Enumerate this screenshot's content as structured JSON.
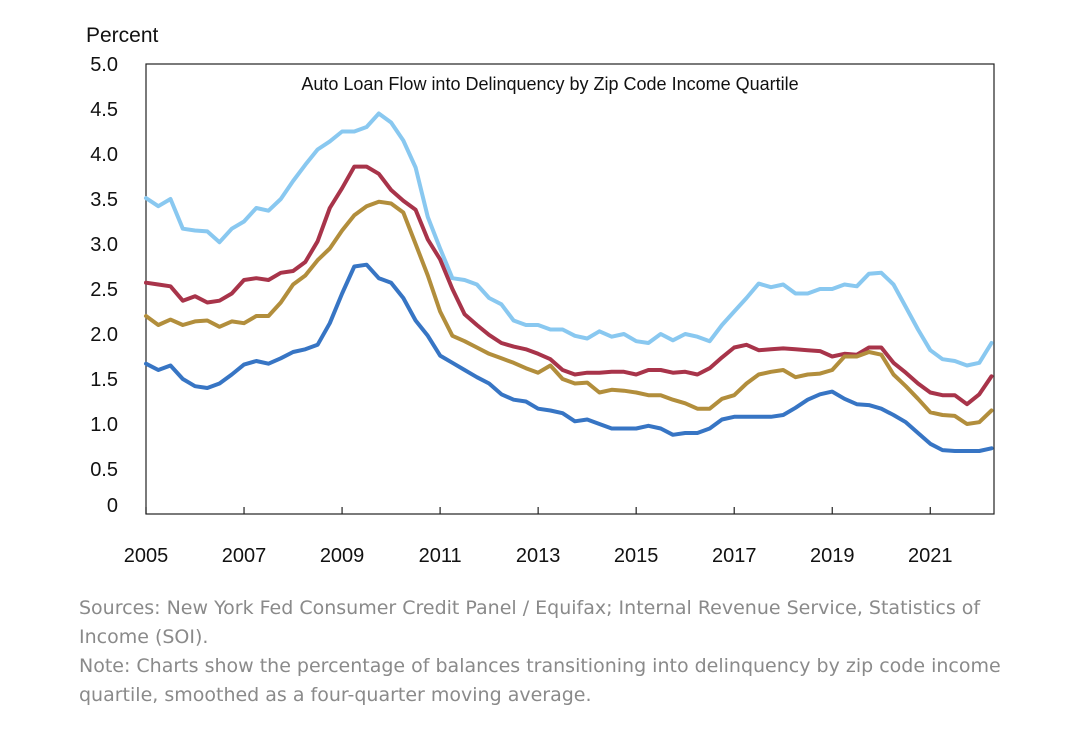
{
  "chart_data": {
    "type": "line",
    "title": "Auto Loan Flow into Delinquency by Zip Code Income Quartile",
    "ylabel": "Percent",
    "xlabel": "",
    "xlim": [
      2005,
      2022.3
    ],
    "ylim": [
      0,
      5
    ],
    "yticks": [
      "0",
      "0.5",
      "1.0",
      "1.5",
      "2.0",
      "2.5",
      "3.0",
      "3.5",
      "4.0",
      "4.5",
      "5.0"
    ],
    "xticks": [
      "2005",
      "2007",
      "2009",
      "2011",
      "2013",
      "2015",
      "2017",
      "2019",
      "2021"
    ],
    "grid": false,
    "legend": "none",
    "x": [
      2005.0,
      2005.25,
      2005.5,
      2005.75,
      2006.0,
      2006.25,
      2006.5,
      2006.75,
      2007.0,
      2007.25,
      2007.5,
      2007.75,
      2008.0,
      2008.25,
      2008.5,
      2008.75,
      2009.0,
      2009.25,
      2009.5,
      2009.75,
      2010.0,
      2010.25,
      2010.5,
      2010.75,
      2011.0,
      2011.25,
      2011.5,
      2011.75,
      2012.0,
      2012.25,
      2012.5,
      2012.75,
      2013.0,
      2013.25,
      2013.5,
      2013.75,
      2014.0,
      2014.25,
      2014.5,
      2014.75,
      2015.0,
      2015.25,
      2015.5,
      2015.75,
      2016.0,
      2016.25,
      2016.5,
      2016.75,
      2017.0,
      2017.25,
      2017.5,
      2017.75,
      2018.0,
      2018.25,
      2018.5,
      2018.75,
      2019.0,
      2019.25,
      2019.5,
      2019.75,
      2020.0,
      2020.25,
      2020.5,
      2020.75,
      2021.0,
      2021.25,
      2021.5,
      2021.75,
      2022.0,
      2022.25
    ],
    "series": [
      {
        "color": "#89c8f0",
        "values": [
          3.51,
          3.42,
          3.5,
          3.17,
          3.15,
          3.14,
          3.02,
          3.17,
          3.25,
          3.4,
          3.37,
          3.5,
          3.7,
          3.88,
          4.05,
          4.14,
          4.25,
          4.25,
          4.3,
          4.45,
          4.35,
          4.15,
          3.85,
          3.3,
          2.95,
          2.62,
          2.6,
          2.55,
          2.4,
          2.33,
          2.15,
          2.1,
          2.1,
          2.05,
          2.05,
          1.98,
          1.95,
          2.03,
          1.97,
          2.0,
          1.92,
          1.9,
          2.0,
          1.93,
          2.0,
          1.97,
          1.92,
          2.1,
          2.25,
          2.4,
          2.56,
          2.52,
          2.55,
          2.45,
          2.45,
          2.5,
          2.5,
          2.55,
          2.53,
          2.67,
          2.68,
          2.55,
          2.3,
          2.05,
          1.82,
          1.72,
          1.7,
          1.65,
          1.68,
          1.9
        ]
      },
      {
        "color": "#a8344a",
        "values": [
          2.57,
          2.55,
          2.53,
          2.37,
          2.42,
          2.35,
          2.37,
          2.45,
          2.6,
          2.62,
          2.6,
          2.68,
          2.7,
          2.8,
          3.03,
          3.4,
          3.62,
          3.86,
          3.86,
          3.78,
          3.6,
          3.48,
          3.38,
          3.05,
          2.83,
          2.5,
          2.22,
          2.1,
          1.99,
          1.9,
          1.86,
          1.83,
          1.78,
          1.72,
          1.6,
          1.55,
          1.57,
          1.57,
          1.58,
          1.58,
          1.55,
          1.6,
          1.6,
          1.57,
          1.58,
          1.55,
          1.62,
          1.74,
          1.85,
          1.88,
          1.82,
          1.83,
          1.84,
          1.83,
          1.82,
          1.81,
          1.75,
          1.78,
          1.77,
          1.85,
          1.85,
          1.68,
          1.57,
          1.45,
          1.35,
          1.32,
          1.32,
          1.22,
          1.33,
          1.53
        ]
      },
      {
        "color": "#b28e3c",
        "values": [
          2.2,
          2.1,
          2.16,
          2.1,
          2.14,
          2.15,
          2.08,
          2.14,
          2.12,
          2.2,
          2.2,
          2.35,
          2.55,
          2.65,
          2.82,
          2.95,
          3.15,
          3.32,
          3.42,
          3.47,
          3.45,
          3.35,
          3.0,
          2.65,
          2.25,
          1.98,
          1.92,
          1.85,
          1.78,
          1.73,
          1.68,
          1.62,
          1.57,
          1.65,
          1.5,
          1.45,
          1.46,
          1.35,
          1.38,
          1.37,
          1.35,
          1.32,
          1.32,
          1.27,
          1.23,
          1.17,
          1.17,
          1.28,
          1.32,
          1.45,
          1.55,
          1.58,
          1.6,
          1.52,
          1.55,
          1.56,
          1.6,
          1.75,
          1.75,
          1.8,
          1.77,
          1.55,
          1.42,
          1.28,
          1.13,
          1.1,
          1.09,
          1.0,
          1.02,
          1.15
        ]
      },
      {
        "color": "#3775c4",
        "values": [
          1.67,
          1.6,
          1.65,
          1.5,
          1.42,
          1.4,
          1.45,
          1.55,
          1.66,
          1.7,
          1.67,
          1.73,
          1.8,
          1.83,
          1.88,
          2.12,
          2.45,
          2.75,
          2.77,
          2.62,
          2.57,
          2.4,
          2.15,
          1.98,
          1.76,
          1.68,
          1.6,
          1.52,
          1.45,
          1.33,
          1.27,
          1.25,
          1.17,
          1.15,
          1.12,
          1.03,
          1.05,
          1.0,
          0.95,
          0.95,
          0.95,
          0.98,
          0.95,
          0.88,
          0.9,
          0.9,
          0.95,
          1.05,
          1.08,
          1.08,
          1.08,
          1.08,
          1.1,
          1.18,
          1.27,
          1.33,
          1.36,
          1.28,
          1.22,
          1.21,
          1.17,
          1.1,
          1.02,
          0.9,
          0.78,
          0.71,
          0.7,
          0.7,
          0.7,
          0.73
        ]
      }
    ]
  },
  "notes": {
    "sources": "Sources: New York Fed Consumer Credit Panel / Equifax; Internal Revenue Service, Statistics of Income (SOI).",
    "note": "Note: Charts show the percentage of balances transitioning into delinquency by zip code income quartile, smoothed as a four-quarter moving average."
  }
}
